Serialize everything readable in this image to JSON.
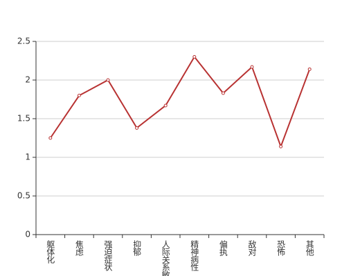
{
  "chart_data": {
    "type": "line",
    "categories": [
      "躯体化",
      "焦虑",
      "强迫症状",
      "抑郁",
      "人际关系敏感",
      "精神病性",
      "偏执",
      "敌对",
      "恐怖",
      "其他"
    ],
    "series": [
      {
        "name": null,
        "color": "#b83232",
        "values": [
          1.25,
          1.8,
          2.0,
          1.38,
          1.67,
          2.3,
          1.83,
          2.17,
          1.14,
          2.14
        ]
      }
    ],
    "ylim": [
      0,
      2.5
    ],
    "yticks": [
      0,
      0.5,
      1,
      1.5,
      2,
      2.5
    ],
    "grid": true
  }
}
